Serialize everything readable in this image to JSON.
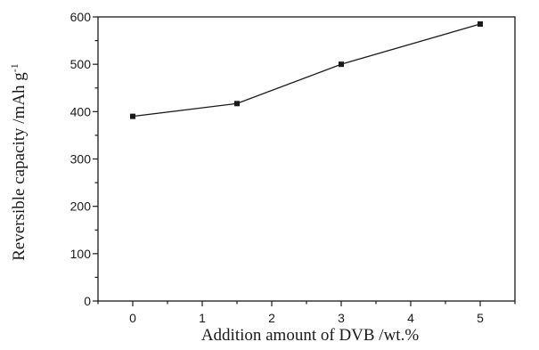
{
  "chart_data": {
    "type": "line",
    "xlabel": "Addition amount of DVB /wt.%",
    "ylabel_main": "Reversible capacity /mAh g",
    "ylabel_sup": "-1",
    "xlim": [
      -0.5,
      5.5
    ],
    "ylim": [
      0,
      600
    ],
    "xticks": [
      0,
      1,
      2,
      3,
      4,
      5
    ],
    "yticks": [
      0,
      100,
      200,
      300,
      400,
      500,
      600
    ],
    "xtick_labels": [
      "0",
      "1",
      "2",
      "3",
      "4",
      "5"
    ],
    "ytick_labels": [
      "0",
      "100",
      "200",
      "300",
      "400",
      "500",
      "600"
    ],
    "grid": false,
    "series": [
      {
        "x": [
          0,
          1.5,
          3,
          5
        ],
        "y": [
          390,
          417,
          500,
          585
        ],
        "marker": "square",
        "color": "#1a1a1a"
      }
    ]
  }
}
